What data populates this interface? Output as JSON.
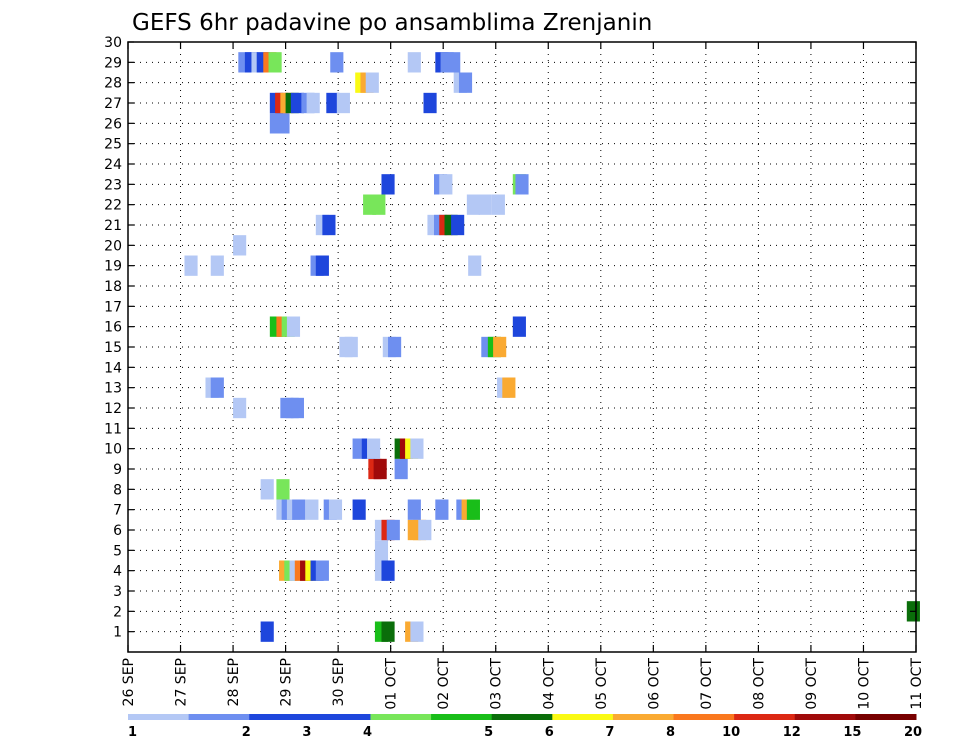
{
  "chart_data": {
    "type": "heatmap",
    "title": "GEFS 6hr padavine po ansamblima Zrenjanin",
    "xlabel": "",
    "ylabel": "",
    "x_tick_labels": [
      "26 SEP",
      "27 SEP",
      "28 SEP",
      "29 SEP",
      "30 SEP",
      "01 OCT",
      "02 OCT",
      "03 OCT",
      "04 OCT",
      "05 OCT",
      "06 OCT",
      "07 OCT",
      "08 OCT",
      "09 OCT",
      "10 OCT",
      "11 OCT"
    ],
    "x_unit": "6-hour step from 26 SEP 00Z",
    "xlim": [
      0,
      60
    ],
    "ylim": [
      0,
      30
    ],
    "y_ticks": [
      1,
      2,
      3,
      4,
      5,
      6,
      7,
      8,
      9,
      10,
      11,
      12,
      13,
      14,
      15,
      16,
      17,
      18,
      19,
      20,
      21,
      22,
      23,
      24,
      25,
      26,
      27,
      28,
      29,
      30
    ],
    "grid": "dotted",
    "colorbar": {
      "labels": [
        "1",
        "2",
        "3",
        "4",
        "5",
        "6",
        "7",
        "8",
        "10",
        "12",
        "15",
        "20"
      ],
      "colors": [
        "#b4c8f5",
        "#6e8ff0",
        "#1e46dc",
        "#1e46dc",
        "#78e65a",
        "#19be19",
        "#0a6e0a",
        "#fafa14",
        "#faaa32",
        "#fa781e",
        "#dc2814",
        "#a00a0a",
        "#780000"
      ]
    },
    "series": [
      {
        "member": 1,
        "cells": [
          [
            10.6,
            3
          ],
          [
            19.3,
            6
          ],
          [
            19.8,
            7
          ],
          [
            21.6,
            9
          ],
          [
            22.0,
            1
          ]
        ]
      },
      {
        "member": 2,
        "cells": [
          [
            59.8,
            7
          ]
        ]
      },
      {
        "member": 4,
        "cells": [
          [
            12.0,
            9
          ],
          [
            12.4,
            5
          ],
          [
            12.8,
            1
          ],
          [
            13.2,
            10
          ],
          [
            13.6,
            12
          ],
          [
            14.0,
            8
          ],
          [
            14.4,
            3
          ],
          [
            14.8,
            2
          ],
          [
            19.3,
            1
          ],
          [
            19.8,
            3
          ]
        ]
      },
      {
        "member": 5,
        "cells": [
          [
            19.3,
            1
          ]
        ]
      },
      {
        "member": 6,
        "cells": [
          [
            19.3,
            1
          ],
          [
            19.8,
            11
          ],
          [
            20.2,
            2
          ],
          [
            21.8,
            9
          ],
          [
            22.2,
            9
          ],
          [
            22.6,
            1
          ]
        ]
      },
      {
        "member": 7,
        "cells": [
          [
            11.8,
            1
          ],
          [
            12.2,
            2
          ],
          [
            12.6,
            1
          ],
          [
            13.0,
            2
          ],
          [
            14.0,
            1
          ],
          [
            15.4,
            2
          ],
          [
            15.8,
            1
          ],
          [
            17.6,
            3
          ],
          [
            21.8,
            2
          ],
          [
            23.9,
            2
          ],
          [
            25.5,
            2
          ],
          [
            25.9,
            9
          ],
          [
            26.3,
            6
          ]
        ]
      },
      {
        "member": 8,
        "cells": [
          [
            10.6,
            1
          ],
          [
            11.8,
            5
          ]
        ]
      },
      {
        "member": 9,
        "cells": [
          [
            18.8,
            11
          ],
          [
            19.2,
            12
          ],
          [
            20.8,
            2
          ]
        ]
      },
      {
        "member": 10,
        "cells": [
          [
            17.6,
            2
          ],
          [
            18.3,
            3
          ],
          [
            18.7,
            1
          ],
          [
            20.8,
            7
          ],
          [
            21.2,
            12
          ],
          [
            21.6,
            8
          ],
          [
            22.0,
            1
          ]
        ]
      },
      {
        "member": 12,
        "cells": [
          [
            8.5,
            1
          ],
          [
            12.1,
            2
          ],
          [
            12.5,
            2
          ],
          [
            12.9,
            2
          ]
        ]
      },
      {
        "member": 13,
        "cells": [
          [
            6.4,
            1
          ],
          [
            6.8,
            2
          ],
          [
            28.6,
            1
          ],
          [
            29.0,
            9
          ]
        ]
      },
      {
        "member": 15,
        "cells": [
          [
            16.6,
            1
          ],
          [
            17.0,
            1
          ],
          [
            19.9,
            1
          ],
          [
            20.3,
            2
          ],
          [
            27.4,
            2
          ],
          [
            27.9,
            6
          ],
          [
            28.3,
            9
          ]
        ]
      },
      {
        "member": 16,
        "cells": [
          [
            11.3,
            6
          ],
          [
            11.8,
            10
          ],
          [
            12.2,
            5
          ],
          [
            12.6,
            1
          ],
          [
            29.8,
            3
          ]
        ]
      },
      {
        "member": 19,
        "cells": [
          [
            4.8,
            1
          ],
          [
            6.8,
            1
          ],
          [
            14.4,
            2
          ],
          [
            14.8,
            4
          ],
          [
            26.4,
            1
          ]
        ]
      },
      {
        "member": 20,
        "cells": [
          [
            8.5,
            1
          ]
        ]
      },
      {
        "member": 21,
        "cells": [
          [
            14.8,
            1
          ],
          [
            15.3,
            4
          ],
          [
            23.3,
            1
          ],
          [
            23.8,
            2
          ],
          [
            24.2,
            11
          ],
          [
            24.6,
            7
          ],
          [
            25.1,
            4
          ]
        ]
      },
      {
        "member": 22,
        "cells": [
          [
            18.4,
            5
          ],
          [
            19.1,
            5
          ],
          [
            26.3,
            1
          ],
          [
            27.2,
            1
          ],
          [
            28.2,
            1
          ]
        ]
      },
      {
        "member": 23,
        "cells": [
          [
            19.8,
            4
          ],
          [
            23.8,
            2
          ],
          [
            24.2,
            1
          ],
          [
            29.8,
            5
          ],
          [
            30.0,
            2
          ]
        ]
      },
      {
        "member": 26,
        "cells": [
          [
            11.3,
            2
          ],
          [
            11.8,
            2
          ]
        ]
      },
      {
        "member": 27,
        "cells": [
          [
            11.3,
            3
          ],
          [
            11.7,
            11
          ],
          [
            12.1,
            9
          ],
          [
            12.5,
            7
          ],
          [
            12.9,
            3
          ],
          [
            13.7,
            2
          ],
          [
            14.1,
            1
          ],
          [
            15.6,
            3
          ],
          [
            16.4,
            1
          ],
          [
            23.0,
            3
          ]
        ]
      },
      {
        "member": 28,
        "cells": [
          [
            17.8,
            8
          ],
          [
            18.2,
            9
          ],
          [
            18.6,
            1
          ],
          [
            25.3,
            1
          ],
          [
            25.7,
            2
          ]
        ]
      },
      {
        "member": 29,
        "cells": [
          [
            8.9,
            2
          ],
          [
            9.4,
            3
          ],
          [
            9.9,
            1
          ],
          [
            10.3,
            4
          ],
          [
            10.8,
            10
          ],
          [
            11.2,
            5
          ],
          [
            15.9,
            2
          ],
          [
            21.8,
            1
          ],
          [
            23.9,
            3
          ],
          [
            24.3,
            2
          ],
          [
            24.8,
            2
          ]
        ]
      }
    ]
  }
}
